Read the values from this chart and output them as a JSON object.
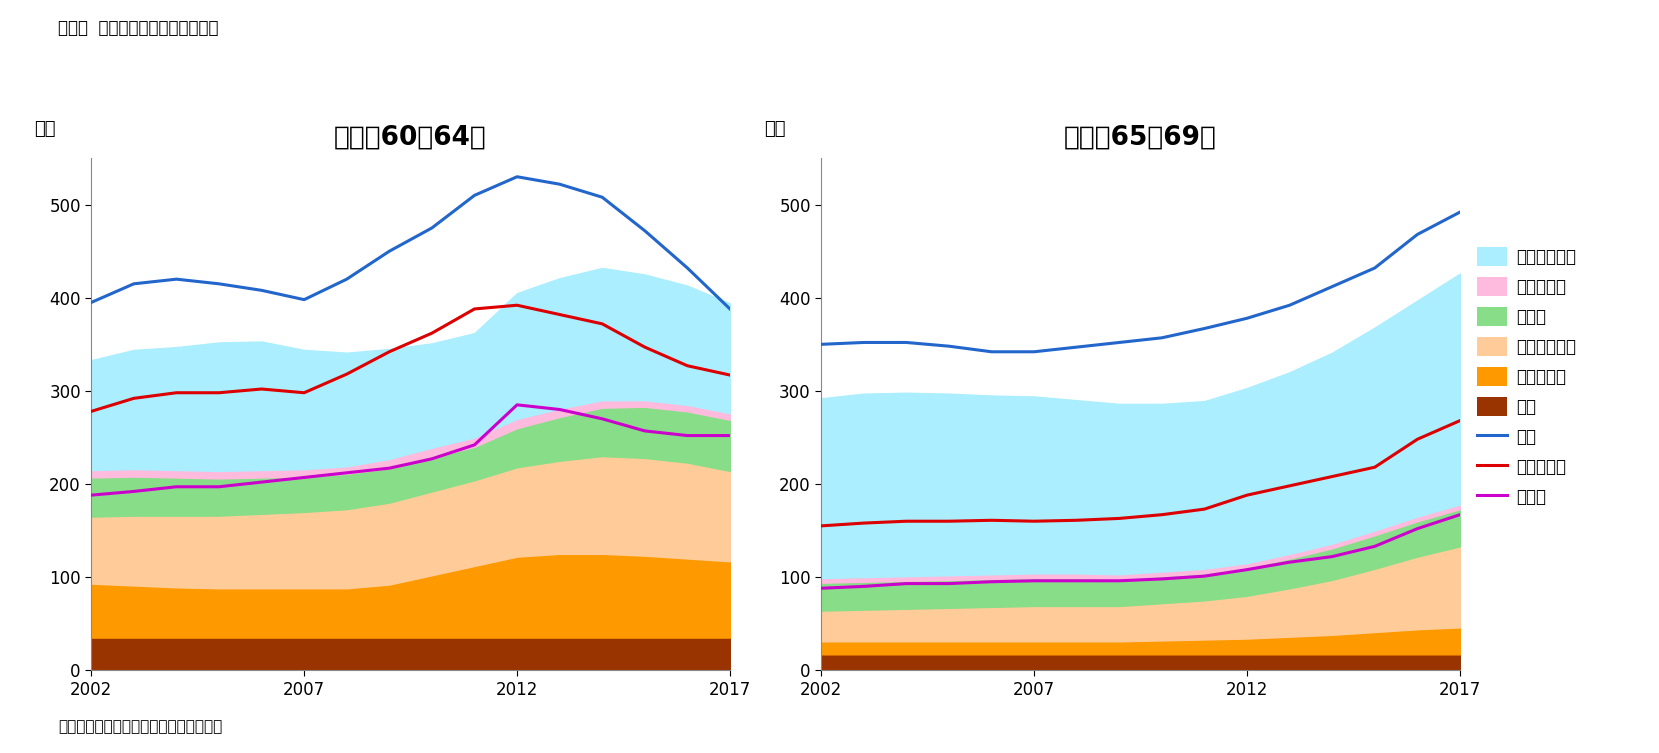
{
  "title": "図表２  就業状態や雇用形態の推移",
  "chart1_title": "男性・60〜64歳",
  "chart2_title": "男性・65〜69歳",
  "ylabel": "万人",
  "source": "（資料）総務省統計局「労働力調査」。",
  "years": [
    2002,
    2003,
    2004,
    2005,
    2006,
    2007,
    2008,
    2009,
    2010,
    2011,
    2012,
    2013,
    2014,
    2015,
    2016,
    2017
  ],
  "chart1": {
    "jinko": [
      395,
      415,
      420,
      415,
      408,
      398,
      420,
      450,
      475,
      510,
      530,
      522,
      508,
      472,
      432,
      388
    ],
    "hiro_jinko": [
      118,
      128,
      132,
      138,
      138,
      128,
      122,
      118,
      112,
      112,
      135,
      140,
      142,
      135,
      128,
      118
    ],
    "kanzen": [
      8,
      8,
      8,
      8,
      8,
      8,
      8,
      10,
      10,
      10,
      10,
      9,
      8,
      7,
      7,
      7
    ],
    "jiei": [
      42,
      42,
      41,
      40,
      39,
      38,
      38,
      37,
      37,
      36,
      42,
      47,
      52,
      55,
      55,
      55
    ],
    "hiseiki": [
      72,
      75,
      77,
      78,
      80,
      82,
      85,
      88,
      90,
      92,
      96,
      100,
      105,
      105,
      103,
      97
    ],
    "seiki": [
      58,
      56,
      54,
      53,
      53,
      53,
      53,
      57,
      67,
      77,
      87,
      90,
      90,
      88,
      85,
      82
    ],
    "yakuin": [
      35,
      35,
      35,
      35,
      35,
      35,
      35,
      35,
      35,
      35,
      35,
      35,
      35,
      35,
      35,
      35
    ],
    "rodo_jinko": [
      278,
      292,
      298,
      298,
      302,
      298,
      318,
      342,
      362,
      388,
      392,
      382,
      372,
      347,
      327,
      317
    ],
    "koyo_sha": [
      188,
      192,
      197,
      197,
      202,
      207,
      212,
      217,
      227,
      242,
      285,
      280,
      270,
      257,
      252,
      252
    ]
  },
  "chart2": {
    "jinko": [
      350,
      352,
      352,
      348,
      342,
      342,
      347,
      352,
      357,
      367,
      378,
      392,
      412,
      432,
      468,
      492
    ],
    "hiro_jinko": [
      193,
      197,
      197,
      195,
      192,
      190,
      186,
      183,
      180,
      180,
      188,
      195,
      205,
      218,
      232,
      248
    ],
    "kanzen": [
      5,
      5,
      5,
      5,
      5,
      5,
      5,
      5,
      5,
      5,
      5,
      5,
      5,
      5,
      5,
      5
    ],
    "jiei": [
      30,
      30,
      30,
      30,
      30,
      30,
      30,
      29,
      29,
      29,
      30,
      32,
      34,
      36,
      38,
      40
    ],
    "hiseiki": [
      33,
      34,
      35,
      36,
      37,
      38,
      38,
      38,
      40,
      42,
      46,
      52,
      59,
      68,
      78,
      87
    ],
    "seiki": [
      14,
      14,
      14,
      14,
      14,
      14,
      14,
      14,
      15,
      16,
      17,
      19,
      21,
      24,
      27,
      29
    ],
    "yakuin": [
      17,
      17,
      17,
      17,
      17,
      17,
      17,
      17,
      17,
      17,
      17,
      17,
      17,
      17,
      17,
      17
    ],
    "rodo_jinko": [
      155,
      158,
      160,
      160,
      161,
      160,
      161,
      163,
      167,
      173,
      188,
      198,
      208,
      218,
      248,
      268
    ],
    "koyo_sha": [
      88,
      90,
      93,
      93,
      95,
      96,
      96,
      96,
      98,
      101,
      108,
      116,
      122,
      133,
      152,
      167
    ]
  },
  "colors": {
    "hiro_jinko_fill": "#aaeeff",
    "kanzen_fill": "#ffbbdd",
    "jiei_fill": "#88dd88",
    "hiseiki_fill": "#ffcc99",
    "seiki_fill": "#ff9900",
    "yakuin_fill": "#993300",
    "jinko_line": "#2266cc",
    "rodo_line": "#dd0000",
    "koyo_line": "#cc00cc"
  },
  "ylim": [
    0,
    550
  ],
  "yticks": [
    0,
    100,
    200,
    300,
    400,
    500
  ]
}
